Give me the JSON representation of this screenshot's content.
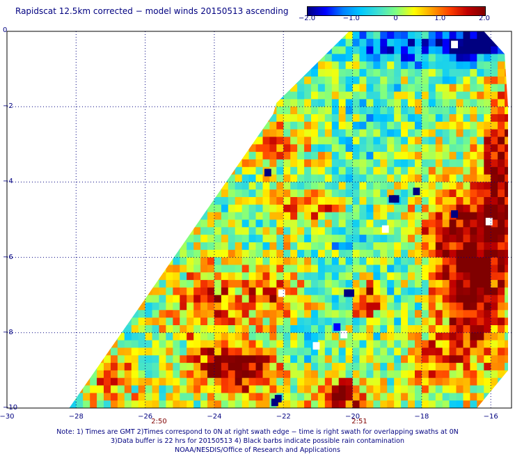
{
  "title": "Rapidscat 12.5km corrected − model winds 20150513 ascending",
  "colorbar": {
    "colors": [
      "#000080",
      "#0000ff",
      "#0080ff",
      "#00c8ff",
      "#40e0d0",
      "#80ff80",
      "#ffff00",
      "#ffa000",
      "#ff4000",
      "#c00000",
      "#800000"
    ],
    "ticks": [
      {
        "value": -2.0,
        "label": "−2.0"
      },
      {
        "value": -1.0,
        "label": "−1.0"
      },
      {
        "value": 0,
        "label": "0"
      },
      {
        "value": 1.0,
        "label": "1.0"
      },
      {
        "value": 2.0,
        "label": "2.0"
      }
    ]
  },
  "chart_data": {
    "type": "heatmap",
    "title": "Rapidscat 12.5km corrected − model winds 20150513 ascending",
    "xlim": [
      -30,
      -15.4
    ],
    "ylim": [
      -10,
      0
    ],
    "value_range": [
      -2.0,
      2.0
    ],
    "grid": true,
    "xticks": [
      {
        "value": -30,
        "label": "−30"
      },
      {
        "value": -28,
        "label": "−28"
      },
      {
        "value": -26,
        "label": "−26"
      },
      {
        "value": -24,
        "label": "−24"
      },
      {
        "value": -22,
        "label": "−22"
      },
      {
        "value": -20,
        "label": "−20"
      },
      {
        "value": -18,
        "label": "−18"
      },
      {
        "value": -16,
        "label": "−16"
      }
    ],
    "yticks": [
      {
        "value": 0,
        "label": "0"
      },
      {
        "value": -2,
        "label": "−2"
      },
      {
        "value": -4,
        "label": "−4"
      },
      {
        "value": -6,
        "label": "−6"
      },
      {
        "value": -8,
        "label": "−8"
      },
      {
        "value": -10,
        "label": "−10"
      }
    ],
    "swath_polygon": [
      [
        -28.2,
        -10
      ],
      [
        -16.4,
        -10
      ],
      [
        -15.5,
        -9
      ],
      [
        -15.5,
        -2.0
      ],
      [
        -15.6,
        -0.6
      ],
      [
        -16.2,
        0
      ],
      [
        -20.1,
        0
      ],
      [
        -22.2,
        -1.9
      ],
      [
        -22.3,
        -2.2
      ],
      [
        -26.0,
        -7.1
      ],
      [
        -28.2,
        -10
      ]
    ],
    "times": [
      {
        "x": -25.6,
        "label": "2:50"
      },
      {
        "x": -19.8,
        "label": "2:51"
      }
    ],
    "features": [
      {
        "lon": -16.6,
        "lat": -5.6,
        "rx": 1.3,
        "ry": 1.6,
        "value": 2.0
      },
      {
        "lon": -15.7,
        "lat": -3.5,
        "rx": 0.5,
        "ry": 2.0,
        "value": 1.8
      },
      {
        "lon": -16.4,
        "lat": -7.6,
        "rx": 0.9,
        "ry": 1.5,
        "value": 1.3
      },
      {
        "lon": -23.3,
        "lat": -9.0,
        "rx": 1.3,
        "ry": 0.7,
        "value": 2.0
      },
      {
        "lon": -20.3,
        "lat": -9.7,
        "rx": 0.8,
        "ry": 0.5,
        "value": 1.9
      },
      {
        "lon": -24.0,
        "lat": -7.3,
        "rx": 1.3,
        "ry": 1.0,
        "value": 1.2
      },
      {
        "lon": -21.3,
        "lat": -4.7,
        "rx": 1.1,
        "ry": 0.5,
        "value": 1.1
      },
      {
        "lon": -22.2,
        "lat": -7.0,
        "rx": 0.8,
        "ry": 0.9,
        "value": 1.0
      },
      {
        "lon": -17.7,
        "lat": -8.8,
        "rx": 0.9,
        "ry": 0.9,
        "value": 1.0
      },
      {
        "lon": -27.0,
        "lat": -9.2,
        "rx": 0.8,
        "ry": 0.8,
        "value": 1.0
      },
      {
        "lon": -19.6,
        "lat": -7.1,
        "rx": 0.4,
        "ry": 0.5,
        "value": 1.7
      },
      {
        "lon": -22.3,
        "lat": -3.0,
        "rx": 1.0,
        "ry": 0.7,
        "value": 0.8
      },
      {
        "lon": -18.0,
        "lat": -0.4,
        "rx": 2.2,
        "ry": 0.5,
        "value": -1.6
      },
      {
        "lon": -16.2,
        "lat": -0.3,
        "rx": 0.7,
        "ry": 0.4,
        "value": -2.0
      },
      {
        "lon": -19.4,
        "lat": -2.5,
        "rx": 1.0,
        "ry": 1.0,
        "value": -0.5
      },
      {
        "lon": -20.0,
        "lat": -5.8,
        "rx": 1.3,
        "ry": 0.9,
        "value": -0.4
      },
      {
        "lon": -21.7,
        "lat": -8.3,
        "rx": 0.9,
        "ry": 0.6,
        "value": -0.6
      },
      {
        "lon": -18.5,
        "lat": -7.0,
        "rx": 0.7,
        "ry": 0.8,
        "value": -0.3
      }
    ],
    "pixels": [
      {
        "lon": -18.75,
        "lat": -4.45,
        "value": -2.0
      },
      {
        "lon": -18.85,
        "lat": -4.45,
        "value": -2.0
      },
      {
        "lon": -20.15,
        "lat": -6.95,
        "value": -2.0
      },
      {
        "lon": -20.05,
        "lat": -6.95,
        "value": -2.0
      },
      {
        "lon": -22.45,
        "lat": -3.75,
        "value": -2.0
      },
      {
        "lon": -17.05,
        "lat": -4.85,
        "value": -2.0
      },
      {
        "lon": -22.15,
        "lat": -9.75,
        "value": -2.0
      },
      {
        "lon": -22.25,
        "lat": -9.85,
        "value": -2.0
      },
      {
        "lon": -18.15,
        "lat": -4.25,
        "value": -2.0
      },
      {
        "lon": -20.45,
        "lat": -7.85,
        "value": -1.6
      }
    ],
    "blanks": [
      {
        "lon": -22.05,
        "lat": -6.95
      },
      {
        "lon": -19.05,
        "lat": -5.25
      },
      {
        "lon": -20.25,
        "lat": -8.05
      },
      {
        "lon": -21.05,
        "lat": -8.35
      },
      {
        "lon": -17.05,
        "lat": -0.35
      },
      {
        "lon": -16.05,
        "lat": -5.05
      }
    ]
  },
  "notes": {
    "line1": "Note: 1) Times are GMT 2)Times correspond to 0N at right swath edge − time is right swath for overlapping swaths at 0N",
    "line2": "3)Data buffer is 22 hrs for 20150513 4) Black barbs indicate possible rain contamination",
    "footer": "NOAA/NESDIS/Office of Research and Applications"
  }
}
